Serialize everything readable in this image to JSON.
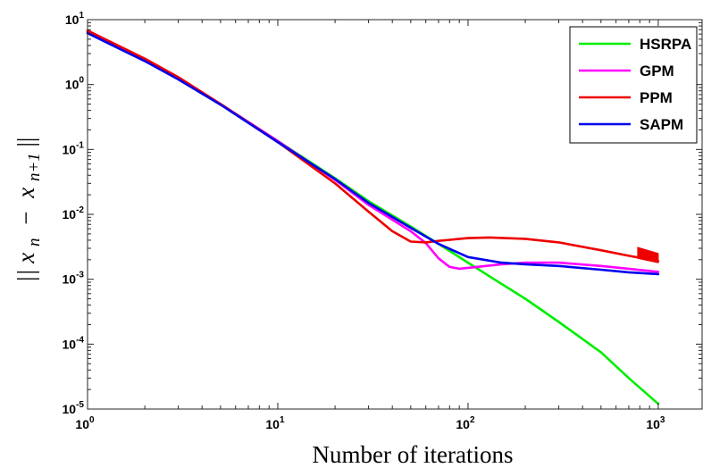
{
  "chart_data": {
    "type": "line",
    "title": "",
    "xlabel": "Number of iterations",
    "ylabel": "||x_n − x_{n+1}||",
    "ylabel_display": {
      "open": "||",
      "x1": "x",
      "sub1": "n",
      "minus": "−",
      "x2": "x",
      "sub2": "n+1",
      "close": "||"
    },
    "xscale": "log",
    "yscale": "log",
    "xlim": [
      1,
      1700
    ],
    "ylim": [
      1e-05,
      10
    ],
    "grid": false,
    "legend_position": "top-right",
    "x_ticks": [
      {
        "base": "10",
        "exp": "0",
        "value": 1
      },
      {
        "base": "10",
        "exp": "1",
        "value": 10
      },
      {
        "base": "10",
        "exp": "2",
        "value": 100
      },
      {
        "base": "10",
        "exp": "3",
        "value": 1000
      }
    ],
    "y_ticks": [
      {
        "base": "10",
        "exp": "1",
        "value": 10
      },
      {
        "base": "10",
        "exp": "0",
        "value": 1
      },
      {
        "base": "10",
        "exp": "-1",
        "value": 0.1
      },
      {
        "base": "10",
        "exp": "-2",
        "value": 0.01
      },
      {
        "base": "10",
        "exp": "-3",
        "value": 0.001
      },
      {
        "base": "10",
        "exp": "-4",
        "value": 0.0001
      },
      {
        "base": "10",
        "exp": "-5",
        "value": 1e-05
      }
    ],
    "series": [
      {
        "name": "HSRPA",
        "color": "#00ee00",
        "x": [
          1,
          2,
          3,
          5,
          10,
          20,
          30,
          50,
          70,
          100,
          150,
          200,
          300,
          500,
          700,
          1000
        ],
        "y": [
          6.5,
          2.4,
          1.25,
          0.5,
          0.135,
          0.036,
          0.016,
          0.0065,
          0.0035,
          0.0018,
          0.00085,
          0.0005,
          0.00022,
          7.5e-05,
          3e-05,
          1.2e-05
        ]
      },
      {
        "name": "GPM",
        "color": "#ff00ff",
        "x": [
          1,
          2,
          3,
          5,
          10,
          20,
          30,
          50,
          60,
          70,
          80,
          90,
          100,
          150,
          200,
          300,
          500,
          700,
          1000
        ],
        "y": [
          6.5,
          2.4,
          1.25,
          0.5,
          0.135,
          0.034,
          0.014,
          0.0055,
          0.0036,
          0.0021,
          0.00155,
          0.00145,
          0.0015,
          0.0017,
          0.0018,
          0.0018,
          0.0016,
          0.00145,
          0.0013
        ]
      },
      {
        "name": "PPM",
        "color": "#ee0000",
        "x": [
          1,
          2,
          3,
          5,
          10,
          20,
          30,
          40,
          50,
          60,
          70,
          100,
          130,
          200,
          300,
          500,
          700,
          1000
        ],
        "y": [
          6.8,
          2.5,
          1.3,
          0.5,
          0.13,
          0.03,
          0.011,
          0.0055,
          0.0038,
          0.0037,
          0.0039,
          0.0043,
          0.0044,
          0.0042,
          0.0037,
          0.0028,
          0.0023,
          0.0019
        ]
      },
      {
        "name": "SAPM",
        "color": "#0000ee",
        "x": [
          1,
          2,
          3,
          5,
          10,
          20,
          30,
          50,
          70,
          100,
          150,
          200,
          300,
          500,
          700,
          1000
        ],
        "y": [
          6.2,
          2.3,
          1.2,
          0.49,
          0.13,
          0.035,
          0.015,
          0.0062,
          0.0035,
          0.0022,
          0.0018,
          0.0017,
          0.0016,
          0.0014,
          0.00128,
          0.0012
        ]
      }
    ],
    "annotations": [
      {
        "type": "band",
        "series": "PPM",
        "color": "#ee0000",
        "x": [
          780,
          1000
        ],
        "y_upper": [
          0.0031,
          0.0025
        ],
        "y_lower": [
          0.0021,
          0.0018
        ]
      }
    ]
  }
}
